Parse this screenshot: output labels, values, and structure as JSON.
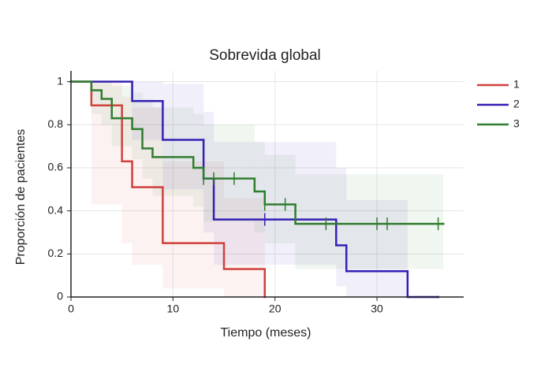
{
  "chart_data": {
    "type": "kaplan-meier",
    "title": "Sobrevida global",
    "x_label": "Tiempo (meses)",
    "y_label": "Proporción de pacientes",
    "xlim": [
      0,
      38.5
    ],
    "ylim": [
      0,
      1.05
    ],
    "xticks": [
      0,
      10,
      20,
      30
    ],
    "yticks": [
      0,
      0.2,
      0.4,
      0.6,
      0.8,
      1
    ],
    "grid": true,
    "series": [
      {
        "name": "1",
        "color": "#d0413b",
        "x": [
          0,
          2,
          5,
          6,
          9,
          15,
          19
        ],
        "values": [
          1,
          0.89,
          0.63,
          0.51,
          0.25,
          0.13,
          0
        ],
        "lower": [
          1,
          0.43,
          0.25,
          0.15,
          0.04,
          0,
          0
        ],
        "upper": [
          1,
          1,
          0.93,
          0.88,
          0.63,
          0.46,
          0
        ],
        "censored": []
      },
      {
        "name": "2",
        "color": "#3320b5",
        "x": [
          0,
          6,
          9,
          13,
          14,
          26,
          27,
          33,
          36
        ],
        "values": [
          1,
          0.91,
          0.73,
          0.55,
          0.36,
          0.24,
          0.12,
          0,
          0
        ],
        "lower": [
          1,
          0.73,
          0.5,
          0.3,
          0.15,
          0.05,
          0,
          0,
          0
        ],
        "upper": [
          1,
          1,
          0.99,
          0.86,
          0.72,
          0.6,
          0.45,
          0,
          0
        ],
        "censored": [
          19
        ]
      },
      {
        "name": "3",
        "color": "#2f7d2e",
        "x": [
          0,
          2,
          3,
          4,
          6,
          7,
          8,
          12,
          13,
          18,
          19,
          22,
          36.5
        ],
        "values": [
          1,
          0.96,
          0.92,
          0.83,
          0.78,
          0.69,
          0.65,
          0.6,
          0.55,
          0.49,
          0.43,
          0.34,
          0.34
        ],
        "lower": [
          1,
          0.85,
          0.8,
          0.7,
          0.64,
          0.55,
          0.47,
          0.42,
          0.35,
          0.3,
          0.25,
          0.13,
          0.13
        ],
        "upper": [
          1,
          1,
          1,
          0.98,
          0.95,
          0.92,
          0.88,
          0.85,
          0.8,
          0.72,
          0.66,
          0.57,
          0.57
        ],
        "censored": [
          13,
          14,
          16,
          19,
          21,
          25,
          30,
          31,
          36
        ]
      }
    ]
  }
}
